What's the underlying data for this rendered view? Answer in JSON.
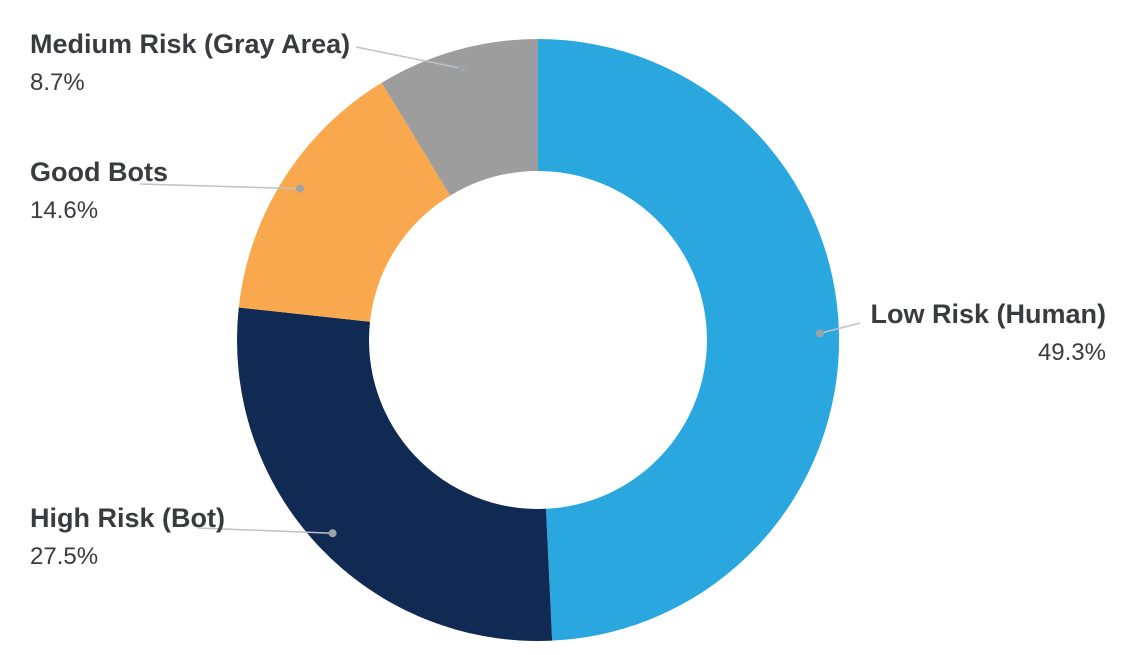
{
  "chart_data": {
    "type": "pie",
    "variant": "donut",
    "title": "",
    "direction": "clockwise",
    "start_angle_deg": 0,
    "inner_radius_ratio": 0.56,
    "legend_position": "callout-labels",
    "slices": [
      {
        "label": "Low Risk (Human)",
        "value": 49.3,
        "display_value": "49.3%",
        "color": "#2ba7e0"
      },
      {
        "label": "High Risk (Bot)",
        "value": 27.5,
        "display_value": "27.5%",
        "color": "#102a54"
      },
      {
        "label": "Good Bots",
        "value": 14.6,
        "display_value": "14.6%",
        "color": "#f9a84d"
      },
      {
        "label": "Medium Risk (Gray Area)",
        "value": 8.7,
        "display_value": "8.7%",
        "color": "#9d9d9d"
      }
    ],
    "style": {
      "leader_line_color": "#c0c2c5",
      "leader_dot_color": "#9fa2a6",
      "text_color": "#3a3b3f",
      "background_color": "#ffffff"
    }
  }
}
